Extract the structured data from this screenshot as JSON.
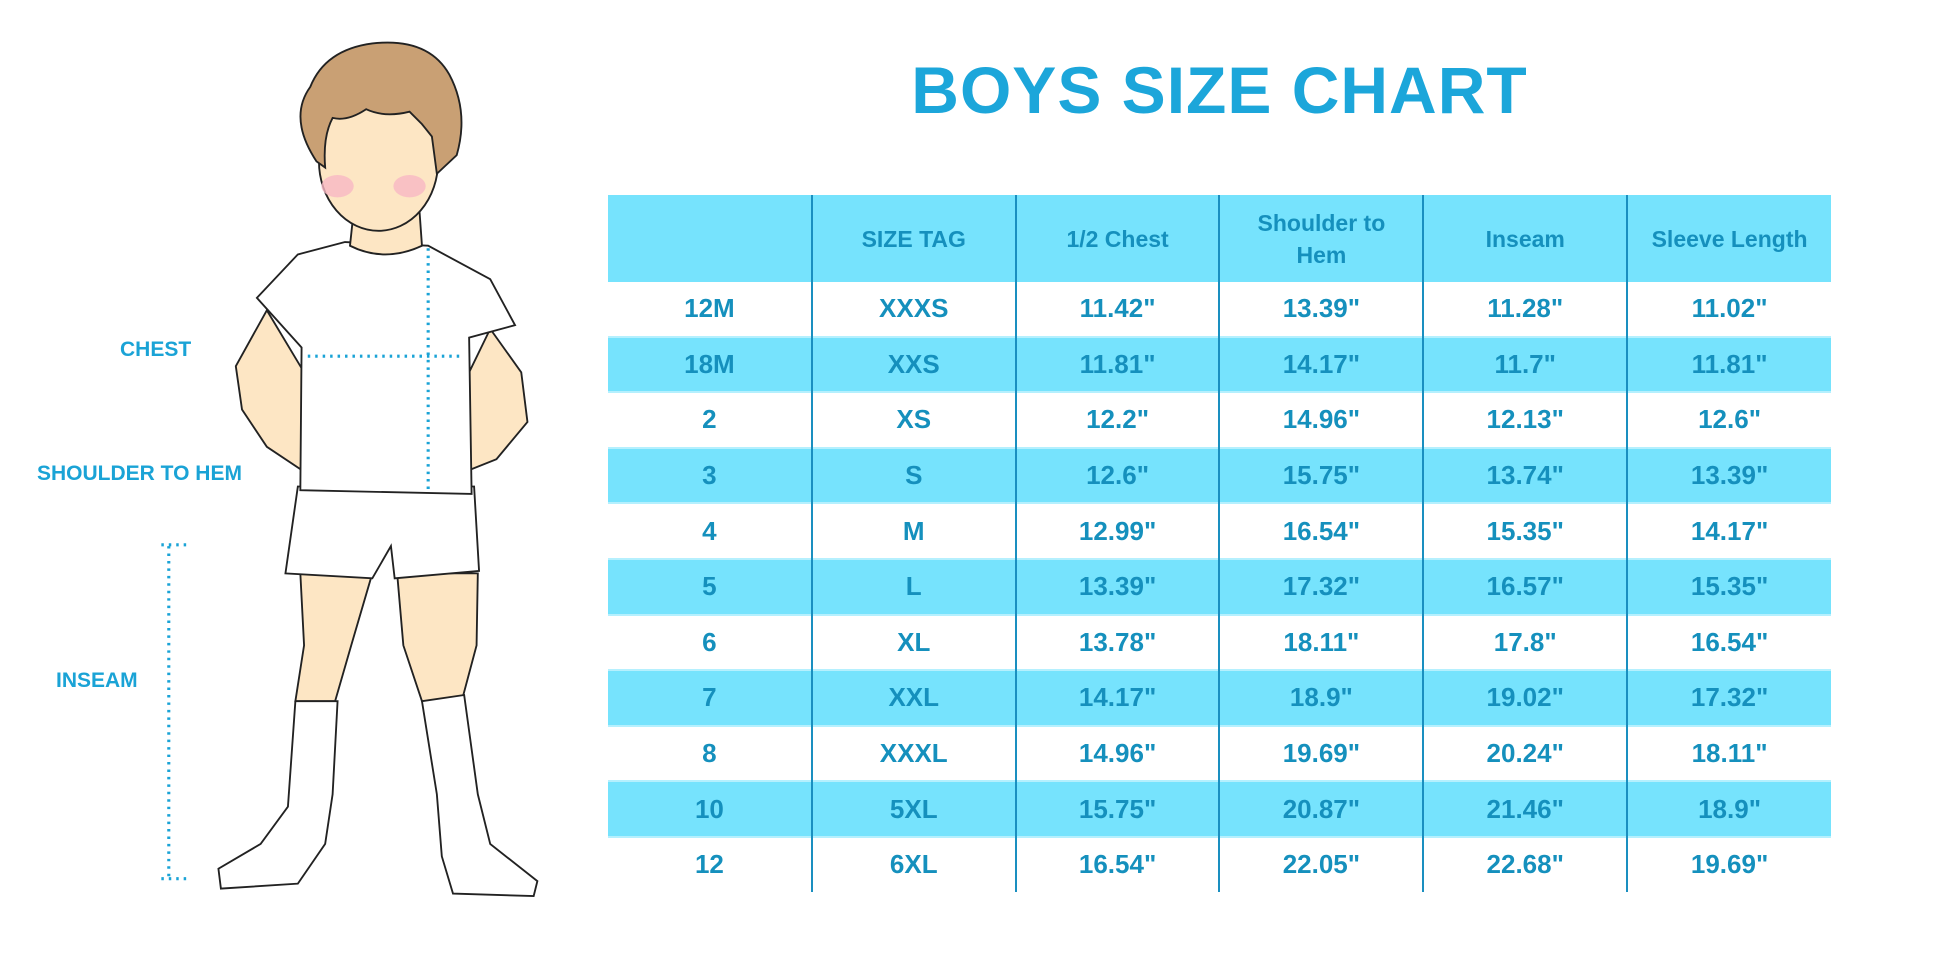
{
  "title": "BOYS SIZE CHART",
  "colors": {
    "accent": "#1ca6da",
    "stripe": "#76e3fd",
    "text": "#1590bd"
  },
  "figure_labels": {
    "chest": "CHEST",
    "shoulder_to_hem": "SHOULDER TO HEM",
    "inseam": "INSEAM"
  },
  "table": {
    "headers": [
      "",
      "SIZE TAG",
      "1/2 Chest",
      "Shoulder to Hem",
      "Inseam",
      "Sleeve Length"
    ],
    "rows": [
      [
        "12M",
        "XXXS",
        "11.42\"",
        "13.39\"",
        "11.28\"",
        "11.02\""
      ],
      [
        "18M",
        "XXS",
        "11.81\"",
        "14.17\"",
        "11.7\"",
        "11.81\""
      ],
      [
        "2",
        "XS",
        "12.2\"",
        "14.96\"",
        "12.13\"",
        "12.6\""
      ],
      [
        "3",
        "S",
        "12.6\"",
        "15.75\"",
        "13.74\"",
        "13.39\""
      ],
      [
        "4",
        "M",
        "12.99\"",
        "16.54\"",
        "15.35\"",
        "14.17\""
      ],
      [
        "5",
        "L",
        "13.39\"",
        "17.32\"",
        "16.57\"",
        "15.35\""
      ],
      [
        "6",
        "XL",
        "13.78\"",
        "18.11\"",
        "17.8\"",
        "16.54\""
      ],
      [
        "7",
        "XXL",
        "14.17\"",
        "18.9\"",
        "19.02\"",
        "17.32\""
      ],
      [
        "8",
        "XXXL",
        "14.96\"",
        "19.69\"",
        "20.24\"",
        "18.11\""
      ],
      [
        "10",
        "5XL",
        "15.75\"",
        "20.87\"",
        "21.46\"",
        "18.9\""
      ],
      [
        "12",
        "6XL",
        "16.54\"",
        "22.05\"",
        "22.68\"",
        "19.69\""
      ]
    ]
  }
}
